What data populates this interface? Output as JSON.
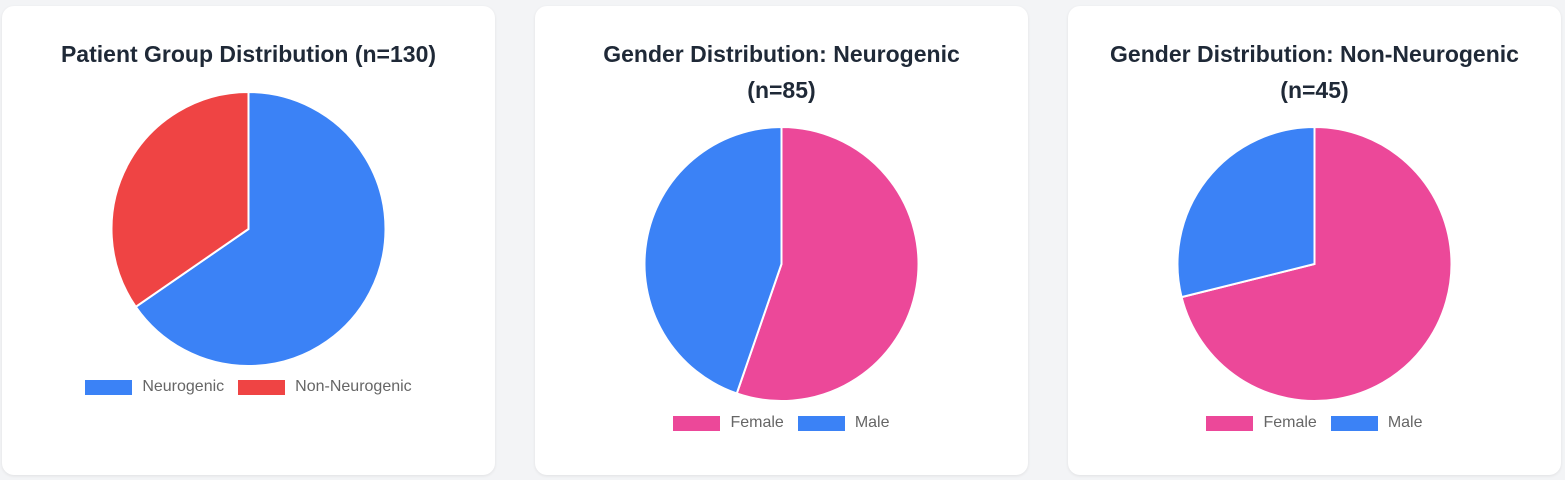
{
  "colors": {
    "blue": "#3b82f6",
    "red": "#ef4444",
    "pink": "#ec4899"
  },
  "chart_data": [
    {
      "type": "pie",
      "title": "Patient Group Distribution (n=130)",
      "categories": [
        "Neurogenic",
        "Non-Neurogenic"
      ],
      "values": [
        85,
        45
      ],
      "colors": [
        "#3b82f6",
        "#ef4444"
      ],
      "legend": "bottom"
    },
    {
      "type": "pie",
      "title": "Gender Distribution: Neurogenic (n=85)",
      "categories": [
        "Female",
        "Male"
      ],
      "values": [
        47,
        38
      ],
      "colors": [
        "#ec4899",
        "#3b82f6"
      ],
      "legend": "bottom"
    },
    {
      "type": "pie",
      "title": "Gender Distribution: Non-Neurogenic (n=45)",
      "categories": [
        "Female",
        "Male"
      ],
      "values": [
        32,
        13
      ],
      "colors": [
        "#ec4899",
        "#3b82f6"
      ],
      "legend": "bottom"
    }
  ]
}
